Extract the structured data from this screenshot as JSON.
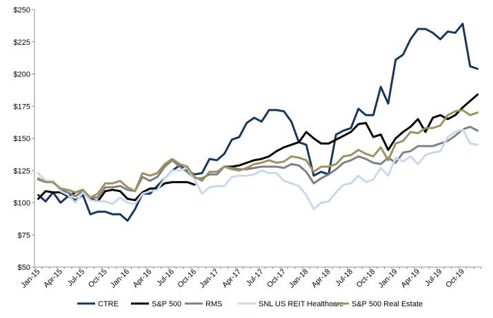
{
  "chart_data": {
    "type": "line",
    "title": "",
    "xlabel": "",
    "ylabel": "",
    "ylim": [
      50,
      250
    ],
    "y_ticks": [
      "$50",
      "$75",
      "$100",
      "$125",
      "$150",
      "$175",
      "$200",
      "$225",
      "$250"
    ],
    "y_tick_values": [
      50,
      75,
      100,
      125,
      150,
      175,
      200,
      225,
      250
    ],
    "grid": false,
    "legend_position": "bottom",
    "x": [
      "Jan-15",
      "Feb-15",
      "Mar-15",
      "Apr-15",
      "May-15",
      "Jun-15",
      "Jul-15",
      "Aug-15",
      "Sep-15",
      "Oct-15",
      "Nov-15",
      "Dec-15",
      "Jan-16",
      "Feb-16",
      "Mar-16",
      "Apr-16",
      "May-16",
      "Jun-16",
      "Jul-16",
      "Aug-16",
      "Sep-16",
      "Oct-16",
      "Nov-16",
      "Dec-16",
      "Jan-17",
      "Feb-17",
      "Mar-17",
      "Apr-17",
      "May-17",
      "Jun-17",
      "Jul-17",
      "Aug-17",
      "Sep-17",
      "Oct-17",
      "Nov-17",
      "Dec-17",
      "Jan-18",
      "Feb-18",
      "Mar-18",
      "Apr-18",
      "May-18",
      "Jun-18",
      "Jul-18",
      "Aug-18",
      "Sep-18",
      "Oct-18",
      "Nov-18",
      "Dec-18",
      "Jan-19",
      "Feb-19",
      "Mar-19",
      "Apr-19",
      "May-19",
      "Jun-19",
      "Jul-19",
      "Aug-19",
      "Sep-19",
      "Oct-19",
      "Nov-19",
      "Dec-19"
    ],
    "x_tick_labels": [
      "Jan-15",
      "Apr-15",
      "Jul-15",
      "Oct-15",
      "Jan-16",
      "Apr-16",
      "Jul-16",
      "Oct-16",
      "Jan-17",
      "Apr-17",
      "Jul-17",
      "Oct-17",
      "Jan-18",
      "Apr-18",
      "Jul-18",
      "Oct-18",
      "Jan-19",
      "Apr-19",
      "Jul-19",
      "Oct-19"
    ],
    "x_tick_indices": [
      0,
      3,
      6,
      9,
      12,
      15,
      18,
      21,
      24,
      27,
      30,
      33,
      36,
      39,
      42,
      45,
      48,
      51,
      54,
      57
    ],
    "series": [
      {
        "name": "CTRE",
        "color": "#14375e",
        "values": [
          106,
          101,
          108,
          100,
          105,
          102,
          106,
          91,
          93,
          93,
          91,
          91,
          86,
          95,
          107,
          107,
          113,
          119,
          125,
          129,
          125,
          122,
          123,
          134,
          133,
          138,
          149,
          151,
          162,
          166,
          163,
          172,
          172,
          171,
          163,
          147,
          145,
          121,
          124,
          122,
          153,
          156,
          158,
          173,
          168,
          168,
          190,
          177,
          211,
          215,
          227,
          235,
          235,
          232,
          227,
          233,
          232,
          239,
          206,
          204
        ]
      },
      {
        "name": "S&P 500",
        "color": "#000000",
        "values": [
          103,
          109,
          108,
          108,
          105,
          108,
          110,
          103,
          101,
          109,
          110,
          109,
          103,
          102,
          108,
          111,
          111,
          115,
          116,
          116,
          116,
          114,
          null,
          null,
          null,
          128,
          128,
          129,
          131,
          133,
          134,
          136,
          140,
          143,
          145,
          147,
          155,
          150,
          146,
          146,
          149,
          152,
          155,
          161,
          162,
          151,
          153,
          141,
          150,
          155,
          159,
          165,
          155,
          166,
          168,
          165,
          168,
          174,
          179,
          184
        ]
      },
      {
        "name": "RMS",
        "color": "#808080",
        "values": [
          118,
          116,
          116,
          110,
          108,
          105,
          109,
          104,
          104,
          112,
          112,
          113,
          110,
          109,
          120,
          117,
          120,
          128,
          133,
          128,
          124,
          119,
          119,
          122,
          122,
          128,
          127,
          126,
          126,
          127,
          128,
          128,
          128,
          127,
          130,
          129,
          124,
          115,
          119,
          122,
          126,
          131,
          133,
          136,
          134,
          131,
          130,
          135,
          131,
          139,
          140,
          144,
          144,
          144,
          146,
          148,
          152,
          157,
          159,
          156
        ]
      },
      {
        "name": "SNL US REIT Healthcare",
        "color": "#c6d9f1",
        "values": [
          123,
          117,
          117,
          109,
          106,
          100,
          108,
          102,
          101,
          101,
          99,
          104,
          100,
          99,
          107,
          109,
          110,
          119,
          125,
          125,
          127,
          118,
          107,
          112,
          113,
          113,
          120,
          121,
          121,
          122,
          125,
          123,
          123,
          117,
          115,
          113,
          106,
          95,
          100,
          101,
          108,
          114,
          115,
          121,
          116,
          118,
          127,
          121,
          135,
          132,
          136,
          130,
          137,
          139,
          140,
          151,
          155,
          157,
          146,
          145
        ]
      },
      {
        "name": "S&P 500 Real Estate",
        "color": "#9c915f",
        "values": [
          119,
          116,
          116,
          111,
          110,
          108,
          110,
          104,
          107,
          115,
          115,
          117,
          112,
          109,
          123,
          121,
          123,
          130,
          134,
          130,
          128,
          120,
          117,
          124,
          124,
          128,
          126,
          125,
          127,
          130,
          131,
          133,
          131,
          132,
          136,
          135,
          133,
          124,
          128,
          128,
          130,
          136,
          137,
          141,
          138,
          136,
          143,
          133,
          146,
          148,
          155,
          154,
          158,
          158,
          160,
          168,
          171,
          172,
          168,
          170
        ]
      }
    ]
  }
}
